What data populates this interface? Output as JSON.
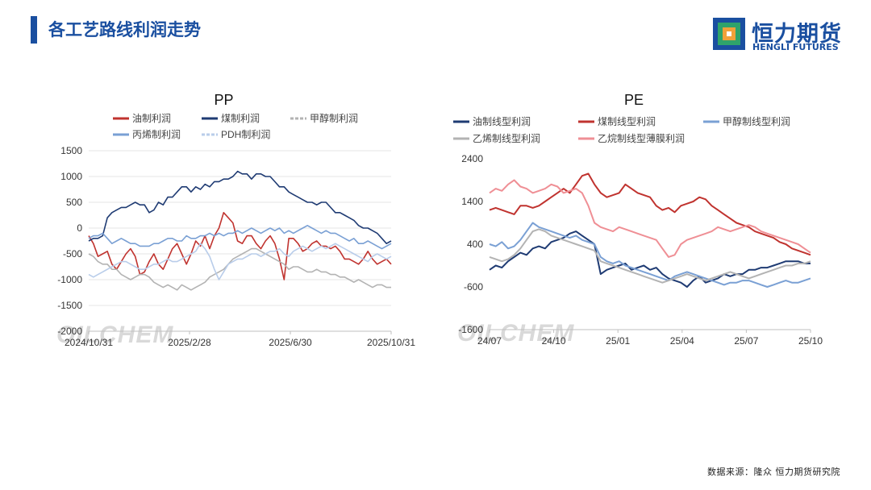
{
  "header": {
    "title": "各工艺路线利润走势"
  },
  "logo": {
    "cn": "恒力期货",
    "en": "HENGLI FUTURES"
  },
  "source": "数据来源：隆众  恒力期货研究院",
  "watermark": "OILCHEM",
  "colors": {
    "brand": "#1a4fa0",
    "dark_navy": "#1f3b73",
    "red": "#c0332f",
    "gray": "#b3b3b3",
    "blue": "#7aa0d4",
    "light_blue": "#b9cdea",
    "pink": "#ef8f95"
  },
  "chart_data": [
    {
      "type": "line",
      "title": "PP",
      "ylim": [
        -2000,
        1500
      ],
      "yticks": [
        1500,
        1000,
        500,
        0,
        -500,
        -1000,
        -1500,
        -2000
      ],
      "xtick_labels": [
        "2024/10/31",
        "2025/2/28",
        "2025/6/30",
        "2025/10/31"
      ],
      "grid": true,
      "legend_position": "top",
      "series": [
        {
          "name": "油制利润",
          "color": "#c0332f",
          "values": [
            -150,
            -300,
            -550,
            -500,
            -450,
            -700,
            -800,
            -650,
            -500,
            -400,
            -550,
            -900,
            -850,
            -650,
            -500,
            -700,
            -800,
            -600,
            -400,
            -300,
            -500,
            -700,
            -500,
            -250,
            -350,
            -150,
            -400,
            -150,
            0,
            300,
            200,
            100,
            -250,
            -300,
            -150,
            -150,
            -300,
            -400,
            -250,
            -150,
            -300,
            -600,
            -1000,
            -200,
            -200,
            -300,
            -450,
            -400,
            -300,
            -250,
            -350,
            -350,
            -400,
            -350,
            -450,
            -600,
            -600,
            -650,
            -700,
            -600,
            -450,
            -600,
            -700,
            -650,
            -600,
            -700
          ]
        },
        {
          "name": "煤制利润",
          "color": "#1f3b73",
          "values": [
            -250,
            -200,
            -200,
            -150,
            200,
            300,
            350,
            400,
            400,
            450,
            500,
            450,
            450,
            300,
            350,
            500,
            450,
            600,
            600,
            700,
            800,
            800,
            700,
            800,
            750,
            850,
            800,
            900,
            900,
            950,
            950,
            1000,
            1100,
            1050,
            1050,
            950,
            1050,
            1050,
            1000,
            1000,
            900,
            800,
            800,
            700,
            650,
            600,
            550,
            500,
            500,
            450,
            500,
            500,
            400,
            300,
            300,
            250,
            200,
            150,
            50,
            0,
            0,
            -50,
            -100,
            -200,
            -300,
            -250
          ]
        },
        {
          "name": "甲醇制利润",
          "color": "#b3b3b3",
          "values": [
            -500,
            -550,
            -650,
            -700,
            -700,
            -800,
            -800,
            -900,
            -950,
            -1000,
            -950,
            -900,
            -900,
            -950,
            -1050,
            -1100,
            -1150,
            -1100,
            -1150,
            -1200,
            -1100,
            -1150,
            -1200,
            -1150,
            -1100,
            -1050,
            -950,
            -900,
            -850,
            -800,
            -700,
            -600,
            -550,
            -500,
            -450,
            -400,
            -400,
            -450,
            -500,
            -550,
            -600,
            -650,
            -700,
            -800,
            -750,
            -750,
            -800,
            -850,
            -850,
            -800,
            -850,
            -850,
            -900,
            -900,
            -950,
            -950,
            -1000,
            -1050,
            -1000,
            -1050,
            -1100,
            -1150,
            -1100,
            -1100,
            -1150,
            -1150
          ]
        },
        {
          "name": "丙烯制利润",
          "color": "#7aa0d4",
          "values": [
            -200,
            -150,
            -150,
            -100,
            -200,
            -300,
            -250,
            -200,
            -250,
            -300,
            -300,
            -350,
            -350,
            -350,
            -300,
            -300,
            -250,
            -200,
            -200,
            -250,
            -250,
            -150,
            -200,
            -200,
            -150,
            -150,
            -100,
            -150,
            -100,
            -150,
            -100,
            -100,
            -50,
            -100,
            -50,
            0,
            -50,
            -100,
            -50,
            0,
            -50,
            0,
            -100,
            -50,
            -100,
            -50,
            0,
            50,
            0,
            -50,
            -100,
            -50,
            -100,
            -100,
            -150,
            -200,
            -250,
            -200,
            -300,
            -300,
            -250,
            -300,
            -350,
            -400,
            -350,
            -300
          ]
        },
        {
          "name": "PDH制利润",
          "color": "#b9cdea",
          "values": [
            -900,
            -950,
            -900,
            -850,
            -800,
            -750,
            -700,
            -650,
            -650,
            -700,
            -750,
            -800,
            -800,
            -750,
            -700,
            -700,
            -650,
            -600,
            -650,
            -650,
            -600,
            -550,
            -500,
            -450,
            -300,
            -400,
            -550,
            -800,
            -1000,
            -850,
            -700,
            -650,
            -600,
            -600,
            -550,
            -500,
            -500,
            -550,
            -500,
            -450,
            -450,
            -400,
            -500,
            -550,
            -450,
            -400,
            -350,
            -400,
            -450,
            -400,
            -350,
            -400,
            -350,
            -300,
            -350,
            -400,
            -450,
            -500,
            -550,
            -600,
            -650,
            -550,
            -500,
            -550,
            -600,
            -550
          ]
        }
      ]
    },
    {
      "type": "line",
      "title": "PE",
      "ylim": [
        -1600,
        2400
      ],
      "yticks": [
        2400,
        1400,
        400,
        -600,
        -1600
      ],
      "xtick_labels": [
        "24/07",
        "24/10",
        "25/01",
        "25/04",
        "25/07",
        "25/10"
      ],
      "grid": false,
      "legend_position": "top",
      "series": [
        {
          "name": "油制线型利润",
          "color": "#1f3b73",
          "values": [
            -200,
            -100,
            -150,
            0,
            100,
            200,
            150,
            300,
            350,
            300,
            450,
            500,
            550,
            650,
            700,
            600,
            500,
            400,
            -300,
            -200,
            -150,
            -100,
            -50,
            -200,
            -150,
            -100,
            -200,
            -150,
            -300,
            -400,
            -450,
            -500,
            -600,
            -450,
            -350,
            -500,
            -450,
            -400,
            -300,
            -350,
            -300,
            -300,
            -200,
            -200,
            -150,
            -150,
            -100,
            -50,
            0,
            0,
            0,
            -50,
            -50
          ]
        },
        {
          "name": "煤制线型利润",
          "color": "#c0332f",
          "values": [
            1200,
            1250,
            1200,
            1150,
            1100,
            1300,
            1300,
            1250,
            1300,
            1400,
            1500,
            1600,
            1700,
            1600,
            1800,
            2000,
            2050,
            1800,
            1600,
            1500,
            1550,
            1600,
            1800,
            1700,
            1600,
            1550,
            1500,
            1300,
            1200,
            1250,
            1150,
            1300,
            1350,
            1400,
            1500,
            1450,
            1300,
            1200,
            1100,
            1000,
            900,
            850,
            800,
            700,
            650,
            600,
            550,
            450,
            400,
            300,
            250,
            200,
            150
          ]
        },
        {
          "name": "甲醇制线型利润",
          "color": "#7aa0d4",
          "values": [
            400,
            350,
            450,
            300,
            350,
            500,
            700,
            900,
            800,
            750,
            700,
            650,
            600,
            550,
            600,
            500,
            450,
            400,
            100,
            0,
            -50,
            0,
            -100,
            -150,
            -200,
            -250,
            -300,
            -350,
            -400,
            -450,
            -350,
            -300,
            -250,
            -300,
            -350,
            -400,
            -450,
            -500,
            -550,
            -500,
            -500,
            -450,
            -450,
            -500,
            -550,
            -600,
            -550,
            -500,
            -450,
            -500,
            -500,
            -450,
            -400
          ]
        },
        {
          "name": "乙烯制线型利润",
          "color": "#b3b3b3",
          "values": [
            100,
            50,
            0,
            50,
            150,
            300,
            500,
            700,
            750,
            700,
            600,
            550,
            500,
            450,
            400,
            350,
            300,
            250,
            0,
            -50,
            -100,
            -150,
            -200,
            -250,
            -300,
            -350,
            -400,
            -450,
            -500,
            -450,
            -400,
            -350,
            -300,
            -350,
            -400,
            -450,
            -400,
            -350,
            -300,
            -250,
            -300,
            -350,
            -400,
            -350,
            -300,
            -250,
            -200,
            -150,
            -100,
            -100,
            -50,
            -50,
            0
          ]
        },
        {
          "name": "乙烷制线型薄膜利润",
          "color": "#ef8f95",
          "values": [
            1600,
            1700,
            1650,
            1800,
            1900,
            1750,
            1700,
            1600,
            1650,
            1700,
            1800,
            1750,
            1600,
            1650,
            1700,
            1600,
            1300,
            900,
            800,
            750,
            700,
            800,
            750,
            700,
            650,
            600,
            550,
            500,
            300,
            100,
            150,
            400,
            500,
            550,
            600,
            650,
            700,
            800,
            750,
            700,
            750,
            800,
            850,
            800,
            700,
            650,
            600,
            550,
            500,
            450,
            400,
            300,
            200
          ]
        }
      ]
    }
  ]
}
